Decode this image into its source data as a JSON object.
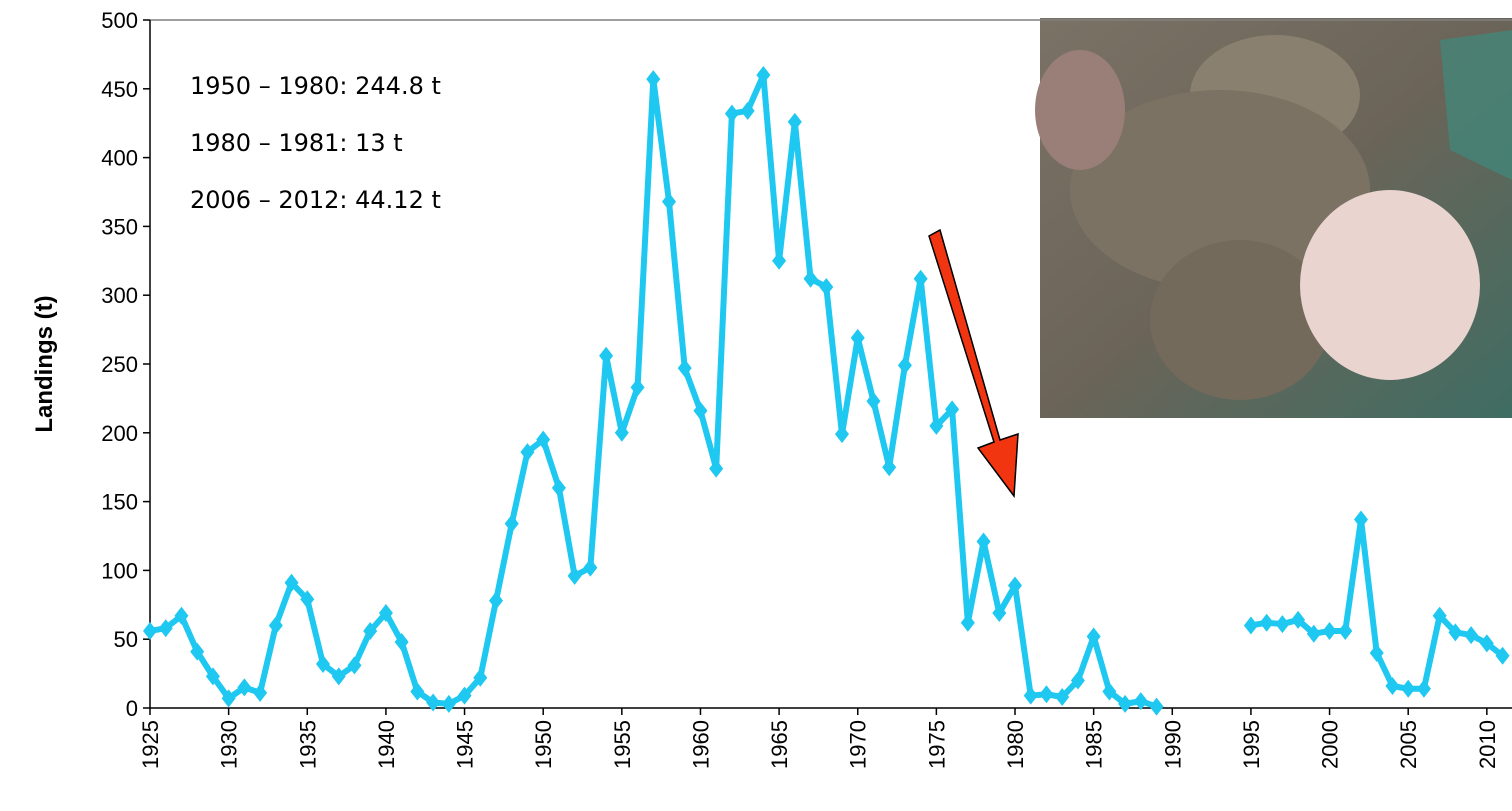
{
  "chart_data": {
    "type": "line",
    "y_label": "Landings (t)",
    "annotations": [
      "1950 – 1980: 244.8 t",
      "1980 – 1981: 13 t",
      "2006 – 2012: 44.12 t"
    ],
    "x": [
      1925,
      1926,
      1927,
      1928,
      1929,
      1930,
      1931,
      1932,
      1933,
      1934,
      1935,
      1936,
      1937,
      1938,
      1939,
      1940,
      1941,
      1942,
      1943,
      1944,
      1945,
      1946,
      1947,
      1948,
      1949,
      1950,
      1951,
      1952,
      1953,
      1954,
      1955,
      1956,
      1957,
      1958,
      1959,
      1960,
      1961,
      1962,
      1963,
      1964,
      1965,
      1966,
      1967,
      1968,
      1969,
      1970,
      1971,
      1972,
      1973,
      1974,
      1975,
      1976,
      1977,
      1978,
      1979,
      1980,
      1981,
      1982,
      1983,
      1984,
      1985,
      1986,
      1987,
      1988,
      1989,
      1990,
      1991,
      1992,
      1993,
      1994,
      1995,
      1996,
      1997,
      1998,
      1999,
      2000,
      2001,
      2002,
      2003,
      2004,
      2005,
      2006,
      2007,
      2008,
      2009,
      2010,
      2011
    ],
    "series": [
      {
        "color": "#1ec8f0",
        "values": [
          56,
          58,
          67,
          41,
          23,
          7,
          15,
          11,
          60,
          91,
          79,
          32,
          23,
          31,
          56,
          69,
          48,
          12,
          4,
          3,
          9,
          22,
          78,
          134,
          186,
          195,
          160,
          96,
          102,
          256,
          200,
          233,
          457,
          368,
          247,
          216,
          174,
          432,
          434,
          460,
          325,
          426,
          312,
          306,
          199,
          269,
          223,
          175,
          249,
          312,
          205,
          217,
          62,
          121,
          69,
          89,
          9,
          10,
          8,
          20,
          52,
          12,
          3,
          5,
          1,
          null,
          null,
          null,
          null,
          null,
          60,
          62,
          61,
          64,
          54,
          56,
          56,
          137,
          40,
          16,
          14,
          14,
          67,
          55,
          53,
          47,
          38
        ]
      }
    ],
    "xlim": [
      1925,
      2011.6
    ],
    "xticks": [
      1925,
      1930,
      1935,
      1940,
      1945,
      1950,
      1955,
      1960,
      1965,
      1970,
      1975,
      1980,
      1985,
      1990,
      1995,
      2000,
      2005,
      2010
    ],
    "ylim": [
      0,
      500
    ],
    "yticks": [
      0,
      50,
      100,
      150,
      200,
      250,
      300,
      350,
      400,
      450,
      500
    ],
    "grid": false
  }
}
